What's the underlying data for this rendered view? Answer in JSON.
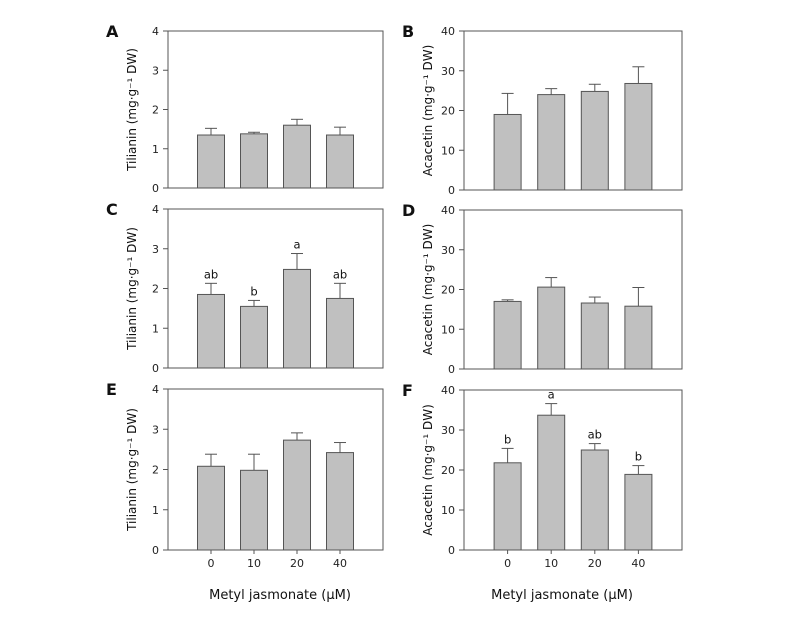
{
  "chart_data": [
    {
      "panel": "A",
      "type": "bar",
      "categories": [
        "0",
        "10",
        "20",
        "40"
      ],
      "values": [
        1.35,
        1.38,
        1.6,
        1.35
      ],
      "errors": [
        0.17,
        0.04,
        0.15,
        0.2
      ],
      "sig_labels": [
        "",
        "",
        "",
        ""
      ],
      "ylabel": "Tilianin (mg·g⁻¹ DW)",
      "ylim": [
        0,
        4
      ],
      "yticks": [
        "0",
        "1",
        "2",
        "3",
        "4"
      ],
      "bar_color": "#c0c0c0"
    },
    {
      "panel": "B",
      "type": "bar",
      "categories": [
        "0",
        "10",
        "20",
        "40"
      ],
      "values": [
        19.0,
        24.0,
        24.8,
        26.8
      ],
      "errors": [
        5.3,
        1.5,
        1.8,
        4.2
      ],
      "sig_labels": [
        "",
        "",
        "",
        ""
      ],
      "ylabel": "Acacetin (mg·g⁻¹ DW)",
      "ylim": [
        0,
        40
      ],
      "yticks": [
        "0",
        "10",
        "20",
        "30",
        "40"
      ],
      "bar_color": "#c0c0c0"
    },
    {
      "panel": "C",
      "type": "bar",
      "categories": [
        "0",
        "10",
        "20",
        "40"
      ],
      "values": [
        1.85,
        1.55,
        2.48,
        1.75
      ],
      "errors": [
        0.28,
        0.15,
        0.4,
        0.38
      ],
      "sig_labels": [
        "ab",
        "b",
        "a",
        "ab"
      ],
      "ylabel": "Tilianin (mg·g⁻¹ DW)",
      "ylim": [
        0,
        4
      ],
      "yticks": [
        "0",
        "1",
        "2",
        "3",
        "4"
      ],
      "bar_color": "#c0c0c0"
    },
    {
      "panel": "D",
      "type": "bar",
      "categories": [
        "0",
        "10",
        "20",
        "40"
      ],
      "values": [
        17.0,
        20.6,
        16.6,
        15.8
      ],
      "errors": [
        0.4,
        2.4,
        1.5,
        4.7
      ],
      "sig_labels": [
        "",
        "",
        "",
        ""
      ],
      "ylabel": "Acacetin (mg·g⁻¹ DW)",
      "ylim": [
        0,
        40
      ],
      "yticks": [
        "0",
        "10",
        "20",
        "30",
        "40"
      ],
      "bar_color": "#c0c0c0"
    },
    {
      "panel": "E",
      "type": "bar",
      "categories": [
        "0",
        "10",
        "20",
        "40"
      ],
      "values": [
        2.08,
        1.98,
        2.73,
        2.42
      ],
      "errors": [
        0.3,
        0.4,
        0.18,
        0.25
      ],
      "sig_labels": [
        "",
        "",
        "",
        ""
      ],
      "ylabel": "Tilianin (mg·g⁻¹ DW)",
      "ylim": [
        0,
        4
      ],
      "yticks": [
        "0",
        "1",
        "2",
        "3",
        "4"
      ],
      "bar_color": "#c0c0c0"
    },
    {
      "panel": "F",
      "type": "bar",
      "categories": [
        "0",
        "10",
        "20",
        "40"
      ],
      "values": [
        21.8,
        33.7,
        25.0,
        18.9
      ],
      "errors": [
        3.6,
        2.9,
        1.6,
        2.2
      ],
      "sig_labels": [
        "b",
        "a",
        "ab",
        "b"
      ],
      "ylabel": "Acacetin (mg·g⁻¹ DW)",
      "ylim": [
        0,
        40
      ],
      "yticks": [
        "0",
        "10",
        "20",
        "30",
        "40"
      ],
      "bar_color": "#c0c0c0"
    }
  ],
  "xlabels": {
    "left": "Metyl jasmonate (μM)",
    "right": "Metyl jasmonate (μM)"
  }
}
